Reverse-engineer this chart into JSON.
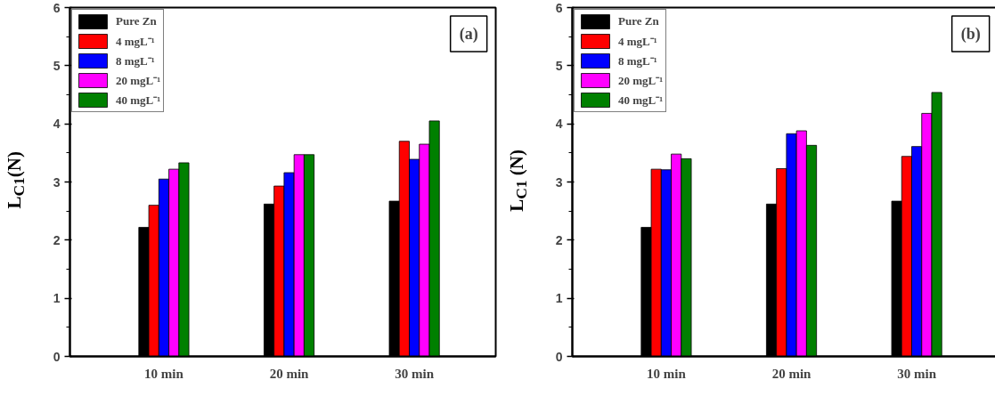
{
  "chart_data": [
    {
      "type": "bar",
      "categories": [
        "10 min",
        "20 min",
        "30 min"
      ],
      "ylabel": "L$_{C1}$(N)",
      "ylim": [
        0,
        6
      ],
      "yticks": [
        0,
        1,
        2,
        3,
        4,
        5,
        6
      ],
      "legend": "top left",
      "grid": false,
      "annotations": [
        "(a)"
      ],
      "series": [
        {
          "name": "Pure Zn",
          "color": "#000000",
          "values": [
            2.22,
            2.62,
            2.67
          ]
        },
        {
          "name": "4 mgL⁻¹",
          "color": "#ff0000",
          "values": [
            2.6,
            2.93,
            3.7
          ]
        },
        {
          "name": "8 mgL⁻¹",
          "color": "#0000ff",
          "values": [
            3.05,
            3.16,
            3.39
          ]
        },
        {
          "name": "20 mgL⁻¹",
          "color": "#ff00ff",
          "values": [
            3.22,
            3.47,
            3.65
          ]
        },
        {
          "name": "40 mgL⁻¹",
          "color": "#008000",
          "values": [
            3.33,
            3.47,
            4.05
          ]
        }
      ]
    },
    {
      "type": "bar",
      "categories": [
        "10 min",
        "20 min",
        "30 min"
      ],
      "ylabel": "L$_{C1}$ (N)",
      "ylim": [
        0,
        6
      ],
      "yticks": [
        0,
        1,
        2,
        3,
        4,
        5,
        6
      ],
      "legend": "top left",
      "grid": false,
      "annotations": [
        "(b)"
      ],
      "series": [
        {
          "name": "Pure Zn",
          "color": "#000000",
          "values": [
            2.22,
            2.62,
            2.67
          ]
        },
        {
          "name": "4 mgL⁻¹",
          "color": "#ff0000",
          "values": [
            3.22,
            3.23,
            3.44
          ]
        },
        {
          "name": "8 mgL⁻¹",
          "color": "#0000ff",
          "values": [
            3.21,
            3.83,
            3.61
          ]
        },
        {
          "name": "20 mgL⁻¹",
          "color": "#ff00ff",
          "values": [
            3.48,
            3.88,
            4.18
          ]
        },
        {
          "name": "40 mgL⁻¹",
          "color": "#008000",
          "values": [
            3.4,
            3.63,
            4.54
          ]
        }
      ]
    }
  ]
}
